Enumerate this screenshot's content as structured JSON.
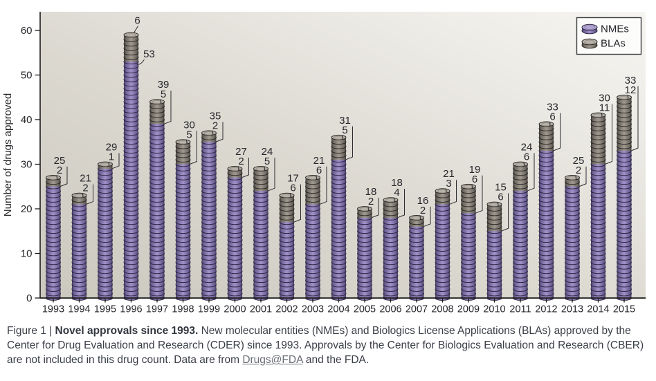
{
  "figure": {
    "legend": {
      "items": [
        {
          "key": "nme",
          "label": "NMEs"
        },
        {
          "key": "bla",
          "label": "BLAs"
        }
      ]
    },
    "caption": {
      "label": "Figure 1 | ",
      "title": "Novel approvals since 1993.",
      "body_before_link": " New molecular entities (NMEs) and Biologics License Applications (BLAs) approved by the Center for Drug Evaluation and Research (CDER) since 1993. Approvals by the Center for Biologics Evaluation and Research (CBER) are not included in this drug count. Data are from ",
      "link_text": "Drugs@FDA",
      "body_after_link": " and the FDA."
    }
  },
  "chart_data": {
    "type": "bar",
    "stacked": true,
    "style": "coin-stack (each disc = 1 approval)",
    "title": "",
    "xlabel": "",
    "ylabel": "Number of drugs approved",
    "ylim": [
      0,
      60
    ],
    "yticks": [
      0,
      10,
      20,
      30,
      40,
      50,
      60
    ],
    "grid": false,
    "legend_position": "top-right",
    "categories": [
      "1993",
      "1994",
      "1995",
      "1996",
      "1997",
      "1998",
      "1999",
      "2000",
      "2001",
      "2002",
      "2003",
      "2004",
      "2005",
      "2006",
      "2007",
      "2008",
      "2009",
      "2010",
      "2011",
      "2012",
      "2013",
      "2014",
      "2015"
    ],
    "series": [
      {
        "name": "NMEs",
        "color": "#9c8cc4",
        "values": [
          25,
          21,
          29,
          53,
          39,
          30,
          35,
          27,
          24,
          17,
          21,
          31,
          18,
          18,
          16,
          21,
          19,
          15,
          24,
          33,
          25,
          30,
          33
        ]
      },
      {
        "name": "BLAs",
        "color": "#9b958b",
        "values": [
          2,
          2,
          1,
          6,
          5,
          5,
          2,
          2,
          5,
          6,
          6,
          5,
          2,
          4,
          2,
          3,
          6,
          6,
          6,
          6,
          2,
          11,
          12
        ]
      }
    ],
    "bar_value_labels": "each bar annotated with NME count and BLA count"
  },
  "colors": {
    "nme_purple_mid": "#a192c9",
    "nme_purple_edge": "#6e6196",
    "nme_purple_dark": "#413a5c",
    "nme_ring": "#2b2640",
    "nme_cap": "#b2a5d0",
    "nme_cap_inner": "#8d7fb4",
    "bla_gray_mid": "#a09a90",
    "bla_gray_edge": "#6e6962",
    "bla_gray_dark": "#3f3b35",
    "bla_ring": "#2b2925",
    "bla_cap": "#b8b3aa",
    "bla_cap_inner": "#938d83",
    "plot_bg_dark": "#cbc8be",
    "plot_bg_mid": "#dcd9d1",
    "plot_bg_light": "#f6f5f1",
    "axis": "#1b1b1b",
    "text": "#26262b",
    "leader_line": "#2b2b31",
    "legend_bg": "#fcfcfb",
    "legend_border": "#3d3d3d",
    "caption_text": "#3a3e47",
    "link": "#686c73"
  }
}
